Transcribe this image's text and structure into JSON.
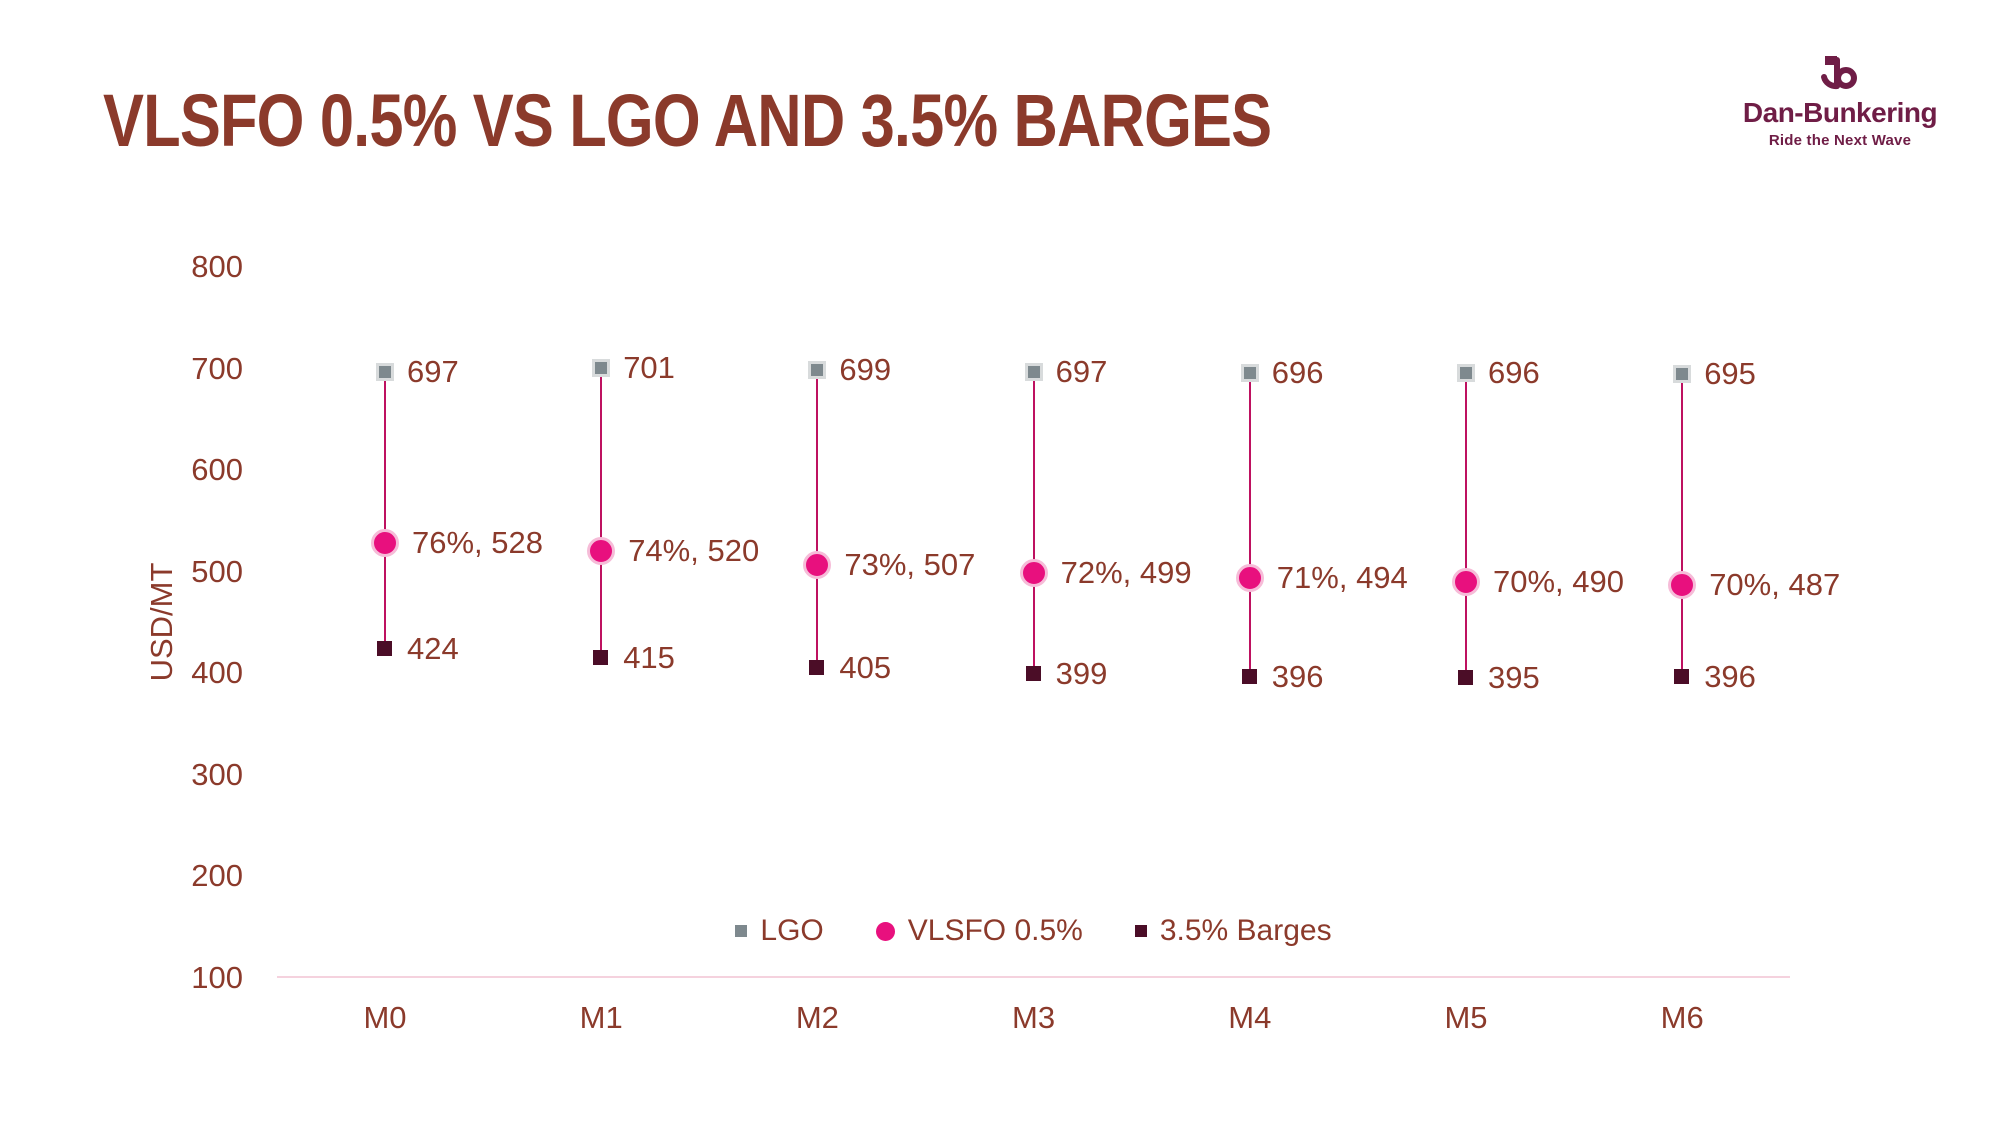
{
  "header": {
    "title": "VLSFO 0.5% VS LGO AND 3.5% BARGES"
  },
  "logo": {
    "name": "Dan-Bunkering",
    "tagline": "Ride the Next Wave",
    "color": "#6f1d46"
  },
  "colors": {
    "text": "#8b3a2b",
    "axis_line": "#f5d2de",
    "connector": "#be1160"
  },
  "chart_data": {
    "type": "scatter",
    "subtype": "dumbbell-dot-plot",
    "title": "VLSFO 0.5% VS LGO AND 3.5% BARGES",
    "xlabel": "",
    "ylabel": "USD/MT",
    "ylim": [
      100,
      800
    ],
    "yticks": [
      "800",
      "700",
      "600",
      "500",
      "400",
      "300",
      "200",
      "100"
    ],
    "ytick_values": [
      800,
      700,
      600,
      500,
      400,
      300,
      200,
      100
    ],
    "grid": false,
    "legend_position": "bottom-center",
    "categories": [
      "M0",
      "M1",
      "M2",
      "M3",
      "M4",
      "M5",
      "M6"
    ],
    "series": [
      {
        "name": "LGO",
        "marker": "square",
        "color": "#7e898e",
        "values": [
          697,
          701,
          699,
          697,
          696,
          696,
          695
        ],
        "labels": [
          "697",
          "701",
          "699",
          "697",
          "696",
          "696",
          "695"
        ]
      },
      {
        "name": "VLSFO 0.5%",
        "marker": "circle",
        "color": "#e8107e",
        "values": [
          528,
          520,
          507,
          499,
          494,
          490,
          487
        ],
        "labels": [
          "76%, 528",
          "74%, 520",
          "73%, 507",
          "72%, 499",
          "71%, 494",
          "70%, 490",
          "70%, 487"
        ]
      },
      {
        "name": "3.5% Barges",
        "marker": "square",
        "color": "#4b0d27",
        "values": [
          424,
          415,
          405,
          399,
          396,
          395,
          396
        ],
        "labels": [
          "424",
          "415",
          "405",
          "399",
          "396",
          "395",
          "396"
        ]
      }
    ]
  }
}
